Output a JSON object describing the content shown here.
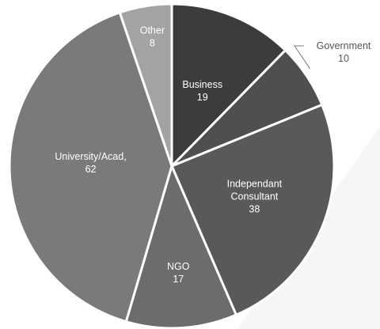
{
  "chart_data": {
    "type": "pie",
    "title": "",
    "slices": [
      {
        "label": "Business",
        "value": 19,
        "value_text": "19",
        "color": "#3c3c3e"
      },
      {
        "label": "Government",
        "value": 10,
        "value_text": "10",
        "color": "#4f4f51"
      },
      {
        "label": "Independant Consultant",
        "value": 38,
        "value_text": "38",
        "color": "#59595b"
      },
      {
        "label": "NGO",
        "value": 17,
        "value_text": "17",
        "color": "#6c6c6e"
      },
      {
        "label": "University/Acad,",
        "value": 62,
        "value_text": "62",
        "color": "#7a7a7c"
      },
      {
        "label": "Other",
        "value": 8,
        "value_text": "8",
        "color": "#a3a3a5"
      }
    ],
    "start": "12 o'clock",
    "direction": "clockwise",
    "legend": "none",
    "stroke_color": "#ffffff"
  }
}
